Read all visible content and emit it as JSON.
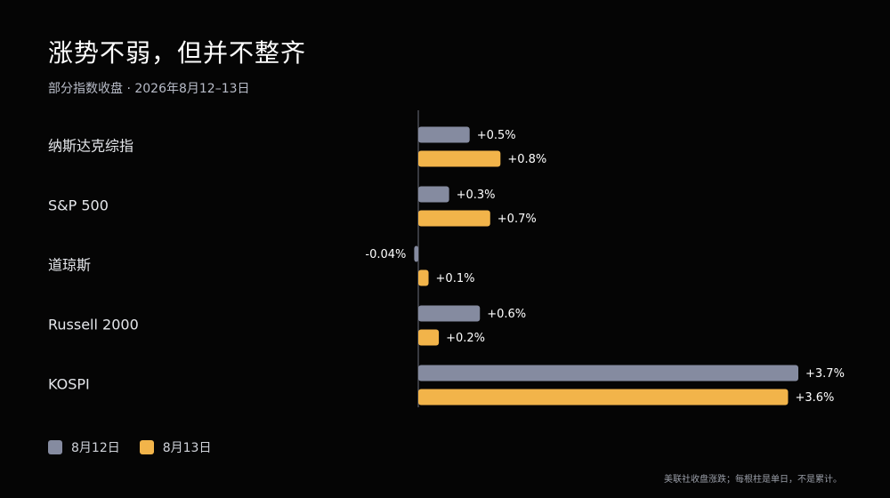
{
  "header": {
    "title": "涨势不弱，但并不整齐",
    "subtitle": "部分指数收盘 · 2026年8月12–13日"
  },
  "footnote": "美联社收盘涨跌；每根柱是单日，不是累计。",
  "colors": {
    "series_aug12": "#858ba0",
    "series_aug13": "#f2b44a",
    "axis": "#6a6f7a",
    "label": "#e4e6ea"
  },
  "chart_data": {
    "type": "bar",
    "orientation": "horizontal",
    "categories": [
      "纳斯达克综指",
      "S&P 500",
      "道琼斯",
      "Russell 2000",
      "KOSPI"
    ],
    "series": [
      {
        "name": "8月12日",
        "values": [
          0.5,
          0.3,
          -0.04,
          0.6,
          3.7
        ],
        "labels": [
          "+0.5%",
          "+0.3%",
          "-0.04%",
          "+0.6%",
          "+3.7%"
        ]
      },
      {
        "name": "8月13日",
        "values": [
          0.8,
          0.7,
          0.1,
          0.2,
          3.6
        ],
        "labels": [
          "+0.8%",
          "+0.7%",
          "+0.1%",
          "+0.2%",
          "+3.6%"
        ]
      }
    ],
    "xlim": [
      0,
      3.7
    ],
    "grid": false,
    "legend_position": "bottom-left"
  }
}
